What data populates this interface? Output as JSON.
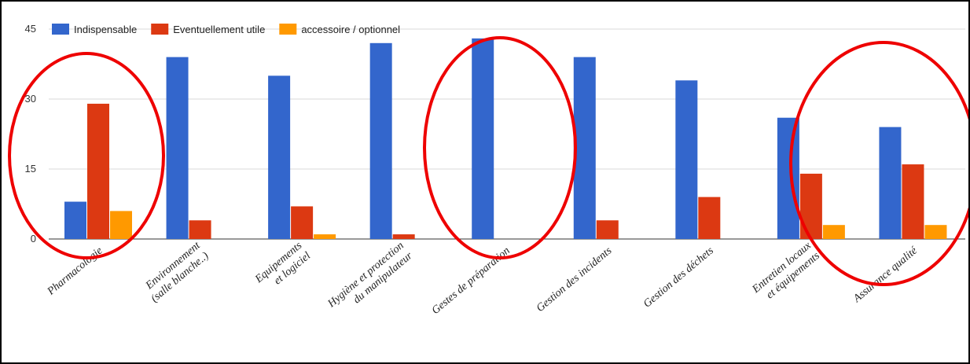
{
  "chart_data": {
    "type": "bar",
    "categories": [
      [
        "Pharmacologie"
      ],
      [
        "Environnement",
        "(salle blanche..)"
      ],
      [
        "Equipements",
        "et logiciel"
      ],
      [
        "Hygiène et protection",
        "du manipulateur"
      ],
      [
        "Gestes de préparation"
      ],
      [
        "Gestion des incidents"
      ],
      [
        "Gestion des déchets"
      ],
      [
        "Entretien locaux",
        "et équipements"
      ],
      [
        "Assurance qualité"
      ]
    ],
    "series": [
      {
        "name": "Indispensable",
        "color": "#3366cc",
        "values": [
          8,
          39,
          35,
          42,
          43,
          39,
          34,
          26,
          24
        ]
      },
      {
        "name": "Eventuellement utile",
        "color": "#dc3912",
        "values": [
          29,
          4,
          7,
          1,
          0,
          4,
          9,
          14,
          16
        ]
      },
      {
        "name": "accessoire / optionnel",
        "color": "#ff9900",
        "values": [
          6,
          0,
          1,
          0,
          0,
          0,
          0,
          3,
          3
        ]
      }
    ],
    "ylim": [
      0,
      45
    ],
    "yticks": [
      0,
      15,
      30,
      45
    ],
    "ytick_labels": [
      "0",
      "15",
      "30",
      "45"
    ],
    "grid": true,
    "legend_position": "top-left",
    "annotations": [
      {
        "shape": "ellipse",
        "color": "#ee0000",
        "around": "Pharmacologie"
      },
      {
        "shape": "ellipse",
        "color": "#ee0000",
        "around": "Gestes de préparation"
      },
      {
        "shape": "ellipse",
        "color": "#ee0000",
        "around": "Entretien locaux / Assurance qualité"
      }
    ]
  }
}
